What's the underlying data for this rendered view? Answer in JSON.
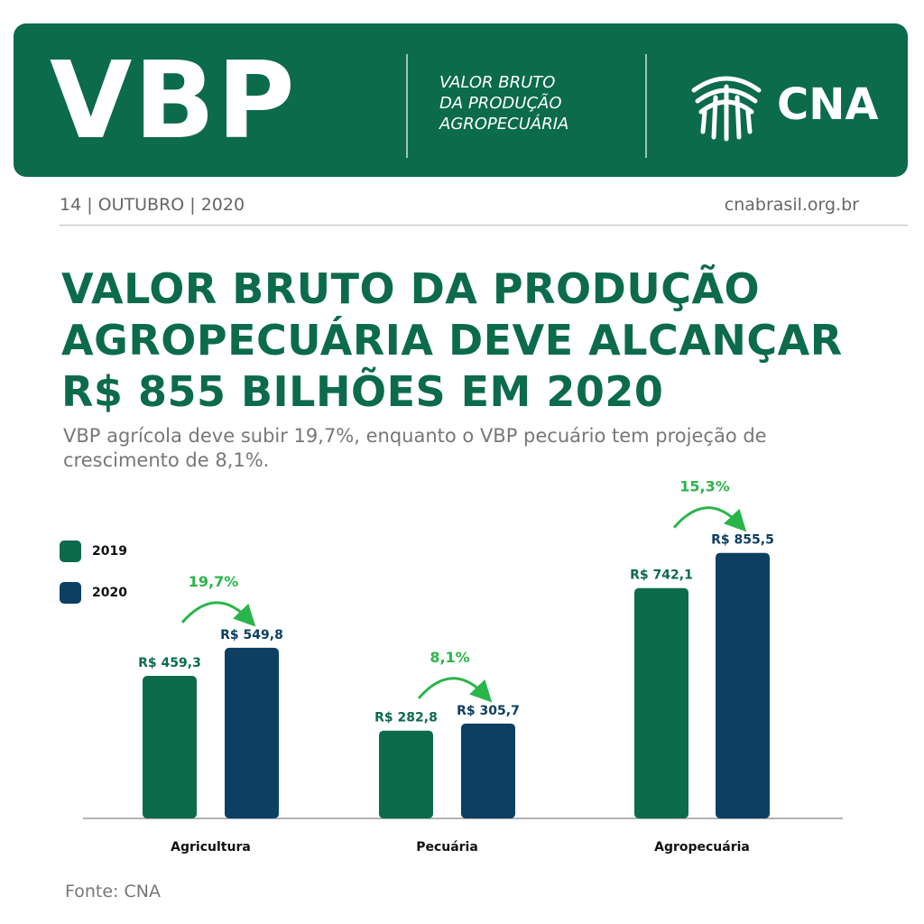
{
  "banner": {
    "logo_text": "VBP",
    "subtitle_lines": [
      "VALOR BRUTO",
      "DA PRODUÇÃO",
      "AGROPECUÁRIA"
    ],
    "brand": "CNA"
  },
  "dateline": "14 | OUTUBRO | 2020",
  "site": "cnabrasil.org.br",
  "headline_lines": [
    "VALOR BRUTO DA PRODUÇÃO",
    "AGROPECUÁRIA DEVE ALCANÇAR",
    "R$ 855 BILHÕES EM 2020"
  ],
  "lead_text": "VBP agrícola deve subir 19,7%, enquanto o VBP pecuário tem projeção de crescimento de 8,1%.",
  "source": "Fonte: CNA",
  "colors": {
    "primary_green": "#0b6b4a",
    "navy": "#0d3f63",
    "growth_green": "#2ab54a"
  },
  "icons": {
    "brand_logo": "cna-leaf-icon",
    "growth_arrow": "curved-arrow-icon"
  },
  "chart_data": {
    "type": "bar",
    "categories": [
      "Agricultura",
      "Pecuária",
      "Agropecuária"
    ],
    "series": [
      {
        "name": "2019",
        "values": [
          459.3,
          282.8,
          742.1
        ],
        "labels": [
          "R$ 459,3",
          "R$ 282,8",
          "R$ 742,1"
        ],
        "color": "#0b6b4a"
      },
      {
        "name": "2020",
        "values": [
          549.8,
          305.7,
          855.5
        ],
        "labels": [
          "R$ 549,8",
          "R$ 305,7",
          "R$ 855,5"
        ],
        "color": "#0d3f63"
      }
    ],
    "growth_labels": [
      "19,7%",
      "8,1%",
      "15,3%"
    ],
    "legend_position": "top-left",
    "grid": false
  }
}
